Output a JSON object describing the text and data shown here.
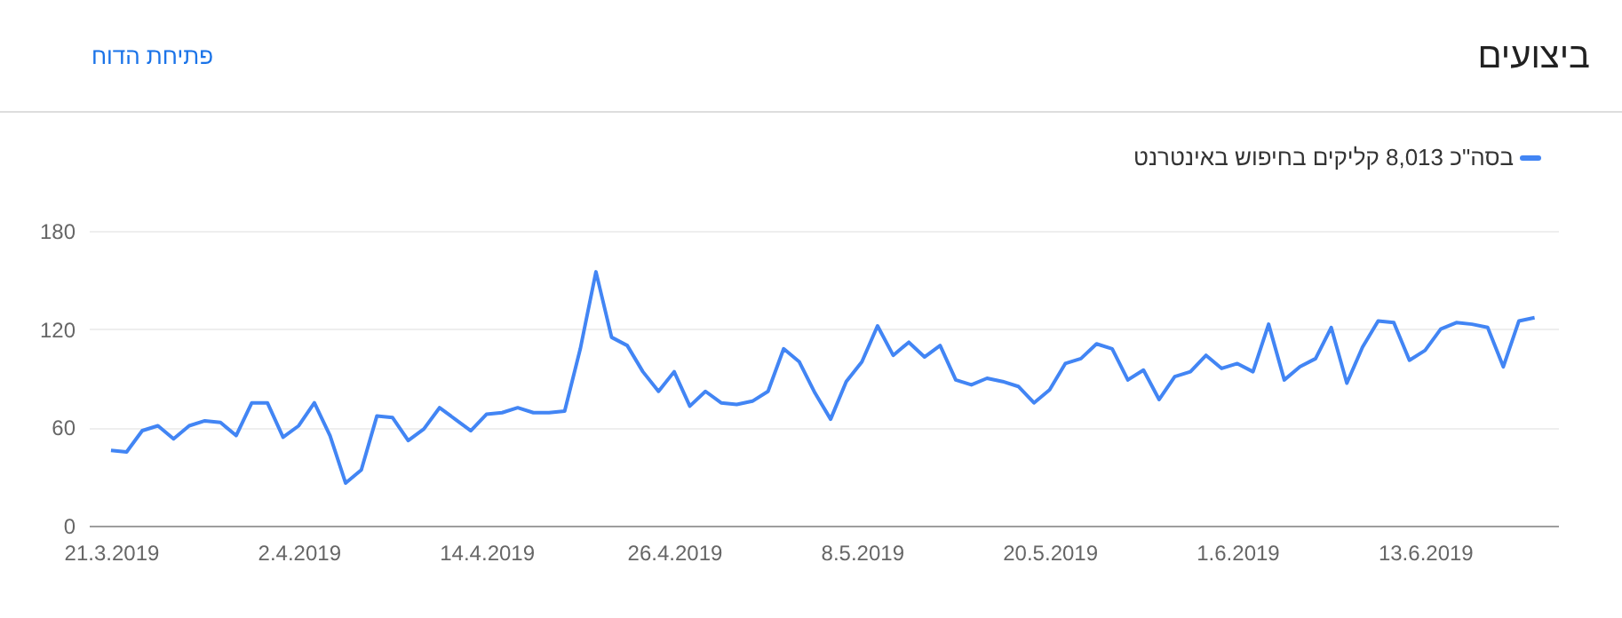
{
  "chart_data": {
    "type": "line",
    "title": "ביצועים",
    "annotations": [
      "פתיחת הדוח"
    ],
    "x": [
      "2019-03-21",
      "2019-03-22",
      "2019-03-23",
      "2019-03-24",
      "2019-03-25",
      "2019-03-26",
      "2019-03-27",
      "2019-03-28",
      "2019-03-29",
      "2019-03-30",
      "2019-03-31",
      "2019-04-01",
      "2019-04-02",
      "2019-04-03",
      "2019-04-04",
      "2019-04-05",
      "2019-04-06",
      "2019-04-07",
      "2019-04-08",
      "2019-04-09",
      "2019-04-10",
      "2019-04-11",
      "2019-04-12",
      "2019-04-13",
      "2019-04-14",
      "2019-04-15",
      "2019-04-16",
      "2019-04-17",
      "2019-04-18",
      "2019-04-19",
      "2019-04-20",
      "2019-04-21",
      "2019-04-22",
      "2019-04-23",
      "2019-04-24",
      "2019-04-25",
      "2019-04-26",
      "2019-04-27",
      "2019-04-28",
      "2019-04-29",
      "2019-04-30",
      "2019-05-01",
      "2019-05-02",
      "2019-05-03",
      "2019-05-04",
      "2019-05-05",
      "2019-05-06",
      "2019-05-07",
      "2019-05-08",
      "2019-05-09",
      "2019-05-10",
      "2019-05-11",
      "2019-05-12",
      "2019-05-13",
      "2019-05-14",
      "2019-05-15",
      "2019-05-16",
      "2019-05-17",
      "2019-05-18",
      "2019-05-19",
      "2019-05-20",
      "2019-05-21",
      "2019-05-22",
      "2019-05-23",
      "2019-05-24",
      "2019-05-25",
      "2019-05-26",
      "2019-05-27",
      "2019-05-28",
      "2019-05-29",
      "2019-05-30",
      "2019-05-31",
      "2019-06-01",
      "2019-06-02",
      "2019-06-03",
      "2019-06-04",
      "2019-06-05",
      "2019-06-06",
      "2019-06-07",
      "2019-06-08",
      "2019-06-09",
      "2019-06-10",
      "2019-06-11",
      "2019-06-12",
      "2019-06-13",
      "2019-06-14",
      "2019-06-15",
      "2019-06-16",
      "2019-06-17",
      "2019-06-18",
      "2019-06-19",
      "2019-06-20"
    ],
    "series": [
      {
        "name": "בסה\"כ 8,013 קליקים בחיפוש באינטרנט",
        "color": "#4285f4",
        "values": [
          46,
          45,
          58,
          61,
          53,
          61,
          64,
          63,
          55,
          75,
          75,
          54,
          61,
          75,
          55,
          26,
          34,
          67,
          66,
          52,
          59,
          72,
          65,
          58,
          68,
          69,
          72,
          69,
          69,
          70,
          108,
          155,
          115,
          110,
          94,
          82,
          94,
          73,
          82,
          75,
          74,
          76,
          82,
          108,
          100,
          81,
          65,
          88,
          100,
          122,
          104,
          112,
          103,
          110,
          89,
          86,
          90,
          88,
          85,
          75,
          83,
          99,
          102,
          111,
          108,
          89,
          95,
          77,
          91,
          94,
          104,
          96,
          99,
          94,
          123,
          89,
          97,
          102,
          121,
          87,
          109,
          125,
          124,
          101,
          107,
          120,
          124,
          123,
          121,
          97,
          125,
          127
        ]
      }
    ],
    "xlim": [
      "2019-03-19T14:00",
      "2019-06-21T12:00"
    ],
    "xticks": [
      {
        "value": "2019-03-21",
        "label": "21.3.2019"
      },
      {
        "value": "2019-04-02",
        "label": "2.4.2019"
      },
      {
        "value": "2019-04-14",
        "label": "14.4.2019"
      },
      {
        "value": "2019-04-26",
        "label": "26.4.2019"
      },
      {
        "value": "2019-05-08",
        "label": "8.5.2019"
      },
      {
        "value": "2019-05-20",
        "label": "20.5.2019"
      },
      {
        "value": "2019-06-01",
        "label": "1.6.2019"
      },
      {
        "value": "2019-06-13",
        "label": "13.6.2019"
      }
    ],
    "ylim": [
      0,
      180
    ],
    "yticks": [
      0,
      60,
      120,
      180
    ],
    "grid": "y",
    "legend": "top right",
    "marker": "none",
    "line_style": "solid"
  }
}
